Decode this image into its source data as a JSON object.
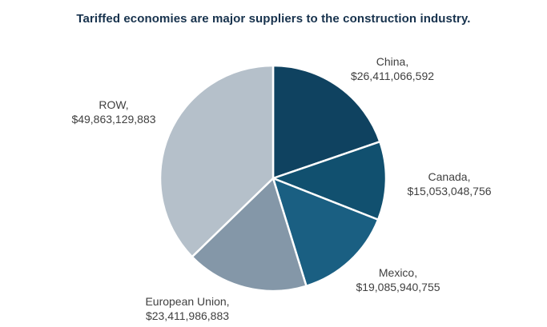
{
  "chart_data": {
    "type": "pie",
    "title": "Tariffed economies are major suppliers to the construction industry.",
    "slices": [
      {
        "name": "China,",
        "value_label": "$26,411,066,592",
        "value": 26411066592,
        "color": "#0f4260"
      },
      {
        "name": "Canada,",
        "value_label": "$15,053,048,756",
        "value": 15053048756,
        "color": "#11506f"
      },
      {
        "name": "Mexico,",
        "value_label": "$19,085,940,755",
        "value": 19085940755,
        "color": "#1a5f82"
      },
      {
        "name": "European Union,",
        "value_label": "$23,411,986,883",
        "value": 23411986883,
        "color": "#8497a8"
      },
      {
        "name": "ROW,",
        "value_label": "$49,863,129,883",
        "value": 49863129883,
        "color": "#b5c0ca"
      }
    ]
  }
}
